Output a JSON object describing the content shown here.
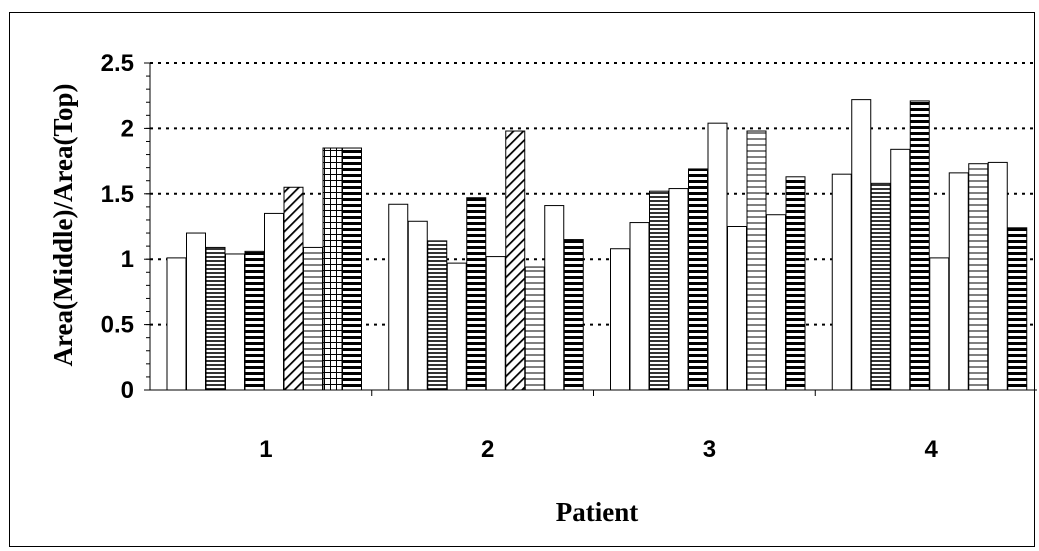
{
  "chart_data": {
    "type": "bar",
    "title": "",
    "xlabel": "Patient",
    "ylabel": "Area(Middle)/Area(Top)",
    "ylim": [
      0,
      2.5
    ],
    "yticks": [
      "0",
      "0.5",
      "1",
      "1.5",
      "2",
      "2.5"
    ],
    "grid": "horizontal dotted",
    "legend": "none",
    "categories": [
      "1",
      "2",
      "3",
      "4"
    ],
    "patterns": [
      "white",
      "white",
      "hlines-fine",
      "white",
      "hlines-bold",
      "diagonal",
      "hlines-light",
      "grid",
      "hlines-bold",
      "white"
    ],
    "values": [
      [
        1.01,
        1.2,
        1.09,
        1.04,
        1.06,
        1.35,
        1.55,
        1.09,
        1.85,
        1.85
      ],
      [
        1.42,
        1.29,
        1.14,
        0.97,
        1.47,
        1.02,
        1.98,
        0.94,
        1.41,
        1.15
      ],
      [
        1.08,
        1.28,
        1.52,
        1.54,
        1.69,
        2.04,
        1.25,
        1.98,
        1.34,
        1.63
      ],
      [
        1.65,
        2.22,
        1.58,
        1.84,
        2.21,
        1.01,
        1.66,
        1.73,
        1.74,
        1.24
      ]
    ],
    "bar_patterns": [
      [
        "white",
        "white",
        "hlines-fine",
        "white",
        "hlines-bold",
        "white",
        "diagonal",
        "hlines-light",
        "grid",
        "hlines-bold"
      ],
      [
        "white",
        "white",
        "hlines-fine",
        "white",
        "hlines-bold",
        "white",
        "diagonal",
        "hlines-light",
        "white",
        "hlines-bold"
      ],
      [
        "white",
        "white",
        "hlines-fine",
        "white",
        "hlines-bold",
        "white",
        "white",
        "hlines-light",
        "white",
        "hlines-bold"
      ],
      [
        "white",
        "white",
        "hlines-fine",
        "white",
        "hlines-bold",
        "white",
        "white",
        "hlines-light",
        "white",
        "hlines-bold"
      ]
    ]
  }
}
